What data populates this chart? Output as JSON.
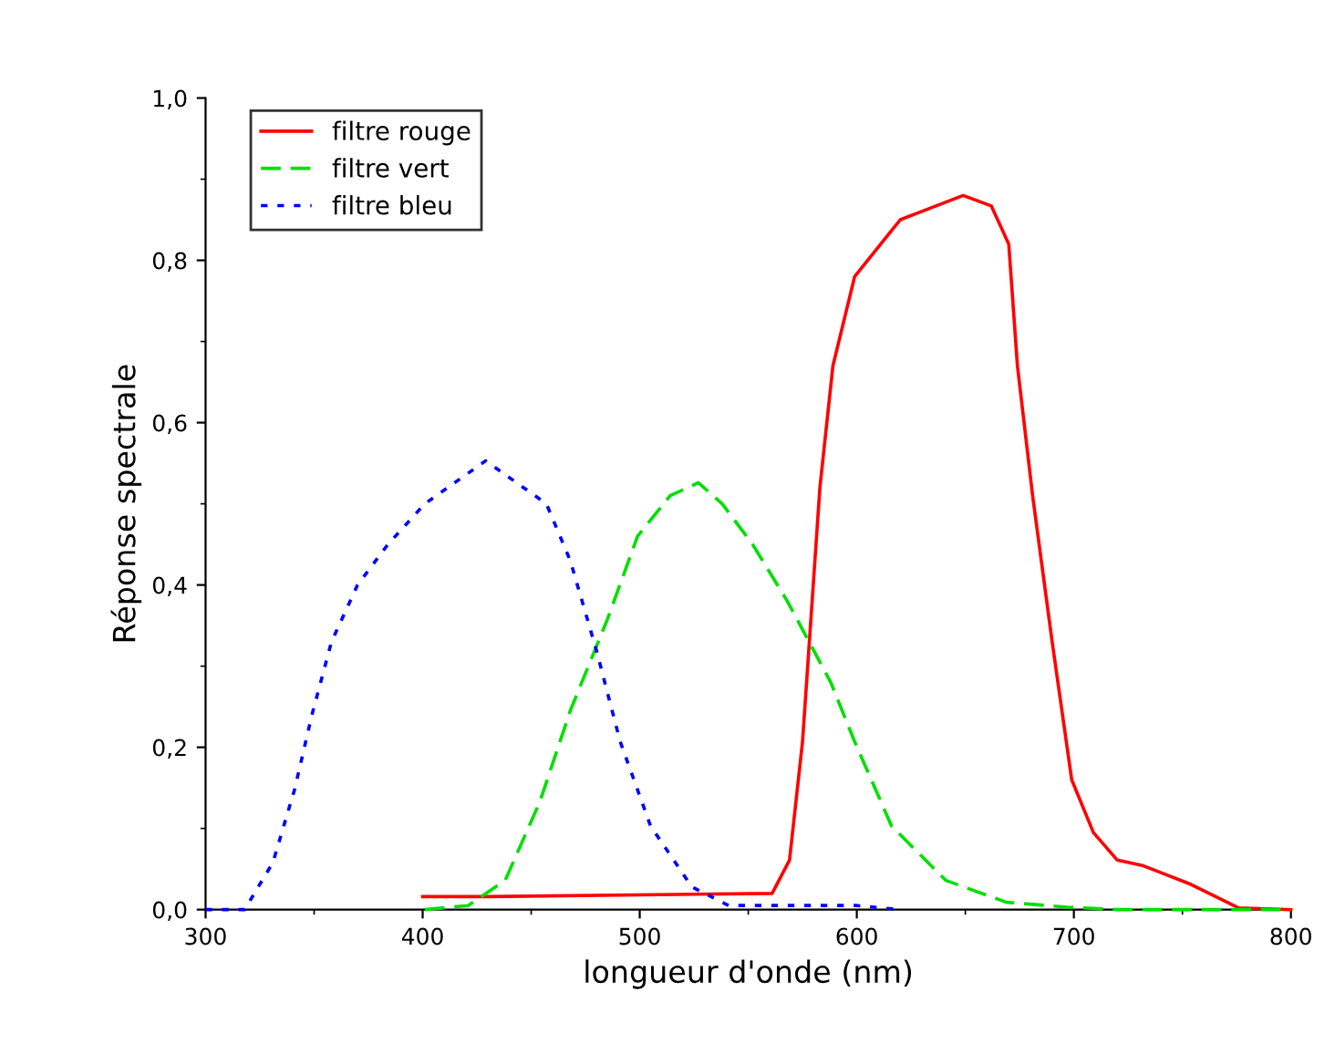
{
  "chart_data": {
    "type": "line",
    "xlabel": "longueur d'onde (nm)",
    "ylabel": "Réponse spectrale",
    "xlim": [
      300,
      800
    ],
    "xticks": [
      300,
      400,
      500,
      600,
      700,
      800
    ],
    "ylim": [
      0,
      1.0
    ],
    "yticks": [
      {
        "value": 0,
        "label": "0,0"
      },
      {
        "value": 0.2,
        "label": "0,2"
      },
      {
        "value": 0.4,
        "label": "0,4"
      },
      {
        "value": 0.6,
        "label": "0,6"
      },
      {
        "value": 0.8,
        "label": "0,8"
      },
      {
        "value": 1.0,
        "label": "1,0"
      }
    ],
    "grid": false,
    "legend": "top left",
    "series": [
      {
        "name": "filtre rouge",
        "color": "#ff0000",
        "line_style": "solid",
        "x": [
          400,
          430,
          561,
          569,
          575,
          583,
          589,
          599,
          620,
          649,
          662,
          670,
          674,
          681,
          690,
          699,
          709,
          720,
          732,
          754,
          776,
          800
        ],
        "values": [
          0.016,
          0.016,
          0.02,
          0.061,
          0.207,
          0.52,
          0.67,
          0.78,
          0.85,
          0.88,
          0.867,
          0.82,
          0.67,
          0.51,
          0.33,
          0.16,
          0.095,
          0.061,
          0.054,
          0.031,
          0.002,
          0
        ]
      },
      {
        "name": "filtre vert",
        "color": "#00e000",
        "line_style": "dashed",
        "x": [
          401,
          421,
          438,
          454,
          468,
          485,
          499,
          514,
          527,
          538,
          552,
          568,
          588,
          599,
          616,
          641,
          669,
          697,
          720,
          800
        ],
        "values": [
          0,
          0.005,
          0.036,
          0.133,
          0.245,
          0.357,
          0.46,
          0.51,
          0.526,
          0.5,
          0.45,
          0.38,
          0.28,
          0.207,
          0.103,
          0.036,
          0.009,
          0.003,
          0,
          0
        ]
      },
      {
        "name": "filtre bleu",
        "color": "#0000ff",
        "line_style": "dotted",
        "x": [
          300,
          318,
          331,
          341,
          349,
          358,
          370,
          384,
          401,
          429,
          457,
          468,
          480,
          491,
          505,
          524,
          541,
          600,
          620
        ],
        "values": [
          0,
          0,
          0.058,
          0.148,
          0.24,
          0.33,
          0.4,
          0.45,
          0.5,
          0.553,
          0.5,
          0.43,
          0.32,
          0.207,
          0.103,
          0.028,
          0.005,
          0.005,
          0
        ]
      }
    ]
  }
}
